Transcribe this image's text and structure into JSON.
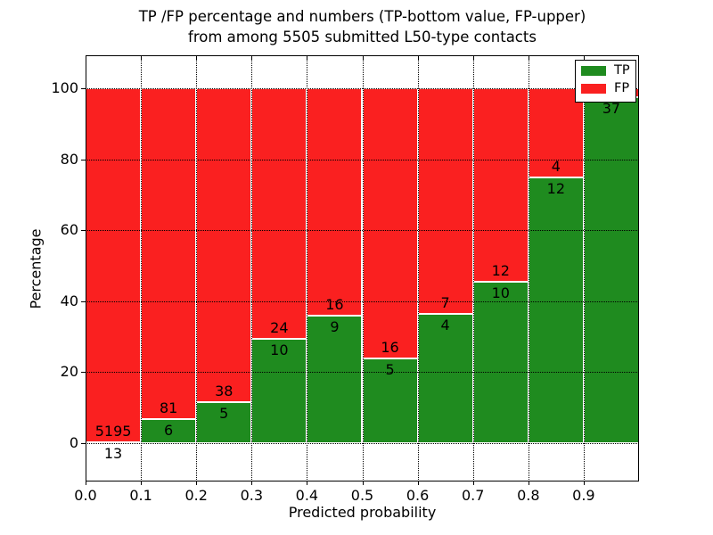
{
  "figure": {
    "title_line1": "TP /FP percentage and numbers (TP-bottom value, FP-upper)",
    "title_line2": "from among 5505 submitted L50-type contacts"
  },
  "chart_data": {
    "type": "bar",
    "stacked": true,
    "title": "TP /FP percentage and numbers (TP-bottom value, FP-upper) from among 5505 submitted L50-type contacts",
    "xlabel": "Predicted probability",
    "ylabel": "Percentage",
    "total_submitted_contacts": 5505,
    "xlim": [
      0.0,
      1.0
    ],
    "ylim": [
      -10.8,
      109.3
    ],
    "grid": true,
    "bar_width": 0.1,
    "x_tick_labels": [
      "0.0",
      "0.1",
      "0.2",
      "0.3",
      "0.4",
      "0.5",
      "0.6",
      "0.7",
      "0.8",
      "0.9"
    ],
    "x_tick_values": [
      0.0,
      0.1,
      0.2,
      0.3,
      0.4,
      0.5,
      0.6,
      0.7,
      0.8,
      0.9
    ],
    "y_tick_labels": [
      "0",
      "20",
      "40",
      "60",
      "80",
      "100"
    ],
    "y_tick_values": [
      0,
      20,
      40,
      60,
      80,
      100
    ],
    "legend": {
      "position": "upper right",
      "entries": [
        {
          "label": "TP",
          "color": "#1f8b1f"
        },
        {
          "label": "FP",
          "color": "#fa2020"
        }
      ]
    },
    "colors": {
      "tp": "#1f8b1f",
      "fp": "#fa2020",
      "bar_edge": "#ffffff"
    },
    "bins": [
      {
        "range": "0.0-0.1",
        "tp": 13,
        "fp": 5195,
        "tp_pct": 0.25,
        "tp_label": "13",
        "fp_label": "5195"
      },
      {
        "range": "0.1-0.2",
        "tp": 6,
        "fp": 81,
        "tp_pct": 6.9,
        "tp_label": "6",
        "fp_label": "81"
      },
      {
        "range": "0.2-0.3",
        "tp": 5,
        "fp": 38,
        "tp_pct": 11.63,
        "tp_label": "5",
        "fp_label": "38"
      },
      {
        "range": "0.3-0.4",
        "tp": 10,
        "fp": 24,
        "tp_pct": 29.41,
        "tp_label": "10",
        "fp_label": "24"
      },
      {
        "range": "0.4-0.5",
        "tp": 9,
        "fp": 16,
        "tp_pct": 36.0,
        "tp_label": "9",
        "fp_label": "16"
      },
      {
        "range": "0.5-0.6",
        "tp": 5,
        "fp": 16,
        "tp_pct": 23.81,
        "tp_label": "5",
        "fp_label": "16"
      },
      {
        "range": "0.6-0.7",
        "tp": 4,
        "fp": 7,
        "tp_pct": 36.36,
        "tp_label": "4",
        "fp_label": "7"
      },
      {
        "range": "0.7-0.8",
        "tp": 10,
        "fp": 12,
        "tp_pct": 45.45,
        "tp_label": "10",
        "fp_label": "12"
      },
      {
        "range": "0.8-0.9",
        "tp": 12,
        "fp": 4,
        "tp_pct": 75.0,
        "tp_label": "12",
        "fp_label": "4"
      },
      {
        "range": "0.9-1.0",
        "tp": 37,
        "fp": null,
        "tp_pct": 97.4,
        "tp_label": "37",
        "fp_label": ""
      }
    ]
  }
}
